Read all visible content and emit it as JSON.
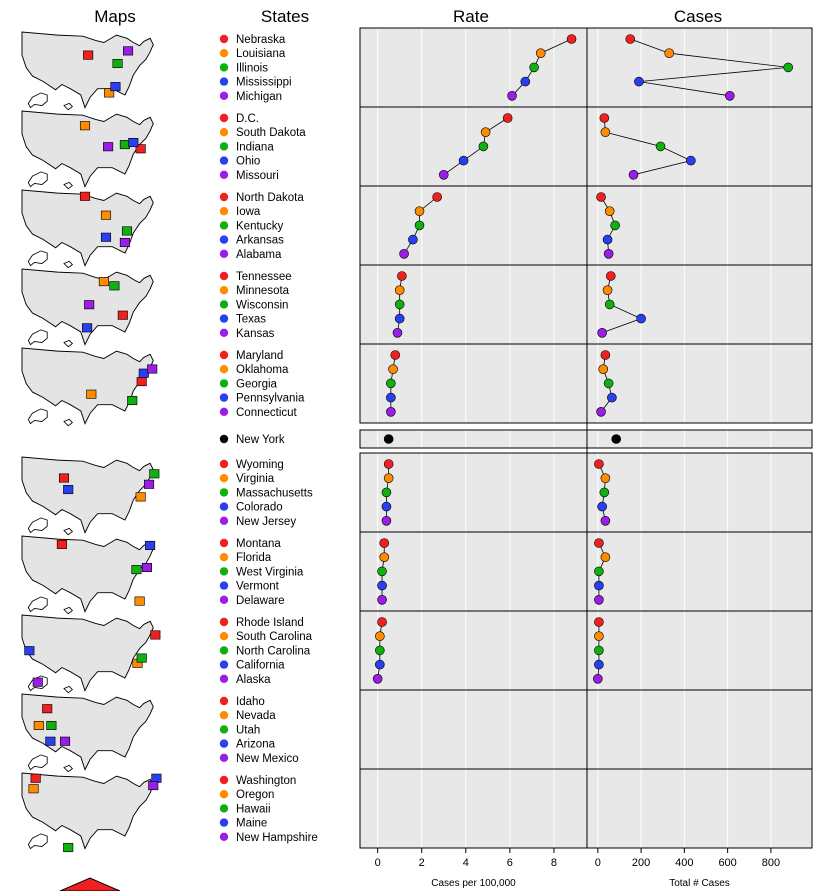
{
  "headers": {
    "maps": "Maps",
    "states": "States",
    "rate": "Rate",
    "cases": "Cases"
  },
  "colors": {
    "red": "#f02020",
    "orange": "#ff8c00",
    "green": "#10b010",
    "blue": "#2a3ff0",
    "purple": "#9a1ee8",
    "black": "#000000",
    "panel_bg": "#e8e8e8",
    "grid": "#ffffff",
    "map_fill": "#e4e4e4"
  },
  "chart_data": {
    "type": "scatter",
    "layout": "linked-micromap",
    "xlabel_rate": "Cases per 100,000",
    "xlabel_cases": "Total # Cases",
    "rate_ticks": [
      "0",
      "2",
      "4",
      "6",
      "8"
    ],
    "cases_ticks": [
      "0",
      "200",
      "400",
      "600",
      "800"
    ],
    "xlim_rate": [
      -0.8,
      9.5
    ],
    "xlim_cases": [
      -50,
      990
    ],
    "groups": [
      {
        "states": [
          "Nebraska",
          "Louisiana",
          "Illinois",
          "Mississippi",
          "Michigan"
        ],
        "rate": [
          8.8,
          7.4,
          7.1,
          6.7,
          6.1
        ],
        "cases": [
          150,
          330,
          880,
          190,
          610
        ]
      },
      {
        "states": [
          "D.C.",
          "South Dakota",
          "Indiana",
          "Ohio",
          "Missouri"
        ],
        "rate": [
          5.9,
          4.9,
          4.8,
          3.9,
          3.0
        ],
        "cases": [
          30,
          35,
          290,
          430,
          165
        ]
      },
      {
        "states": [
          "North Dakota",
          "Iowa",
          "Kentucky",
          "Arkansas",
          "Alabama"
        ],
        "rate": [
          2.7,
          1.9,
          1.9,
          1.6,
          1.2
        ],
        "cases": [
          15,
          55,
          80,
          45,
          50
        ]
      },
      {
        "states": [
          "Tennessee",
          "Minnesota",
          "Wisconsin",
          "Texas",
          "Kansas"
        ],
        "rate": [
          1.1,
          1.0,
          1.0,
          1.0,
          0.9
        ],
        "cases": [
          60,
          45,
          55,
          200,
          20
        ]
      },
      {
        "states": [
          "Maryland",
          "Oklahoma",
          "Georgia",
          "Pennsylvania",
          "Connecticut"
        ],
        "rate": [
          0.8,
          0.7,
          0.6,
          0.6,
          0.6
        ],
        "cases": [
          35,
          25,
          50,
          65,
          15
        ]
      },
      {
        "states": [
          "New York"
        ],
        "rate": [
          0.5
        ],
        "cases": [
          85
        ],
        "colors": [
          "#000000"
        ]
      },
      {
        "states": [
          "Wyoming",
          "Virginia",
          "Massachusetts",
          "Colorado",
          "New Jersey"
        ],
        "rate": [
          0.5,
          0.5,
          0.4,
          0.4,
          0.4
        ],
        "cases": [
          5,
          35,
          30,
          20,
          35
        ]
      },
      {
        "states": [
          "Montana",
          "Florida",
          "West Virginia",
          "Vermont",
          "Delaware"
        ],
        "rate": [
          0.3,
          0.3,
          0.2,
          0.2,
          0.2
        ],
        "cases": [
          5,
          35,
          5,
          5,
          5
        ]
      },
      {
        "states": [
          "Rhode Island",
          "South Carolina",
          "North Carolina",
          "California",
          "Alaska"
        ],
        "rate": [
          0.2,
          0.1,
          0.1,
          0.1,
          0.0
        ],
        "cases": [
          5,
          5,
          5,
          5,
          0
        ]
      },
      {
        "states": [
          "Idaho",
          "Nevada",
          "Utah",
          "Arizona",
          "New Mexico"
        ],
        "rate": [],
        "cases": []
      },
      {
        "states": [
          "Washington",
          "Oregon",
          "Hawaii",
          "Maine",
          "New Hampshire"
        ],
        "rate": [],
        "cases": []
      }
    ]
  }
}
